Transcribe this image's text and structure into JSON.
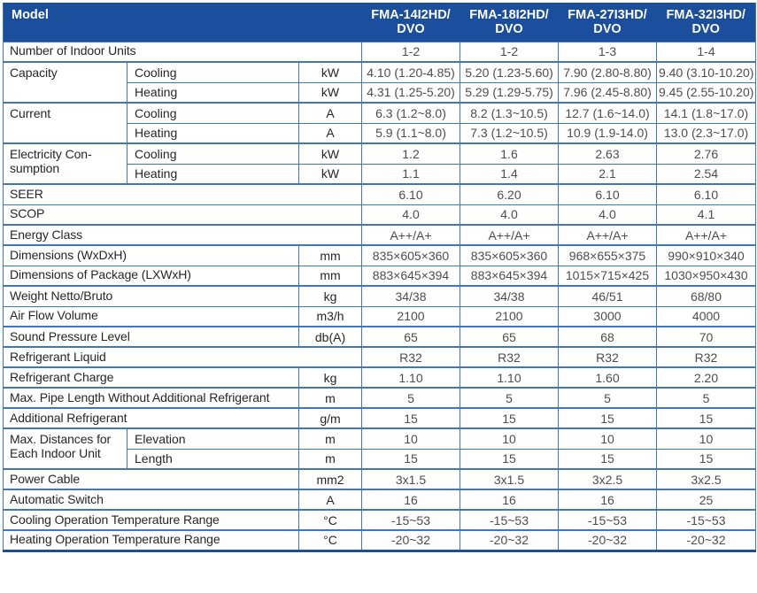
{
  "colors": {
    "header_bg": "#1C4E9E",
    "border": "#4077B8",
    "label_text": "#262626",
    "value_text": "#4D4D4D",
    "header_text": "#FFFFFF"
  },
  "table": {
    "header": {
      "model_label": "Model",
      "models": [
        "FMA-14I2HD/DVO",
        "FMA-18I2HD/DVO",
        "FMA-27I3HD/DVO",
        "FMA-32I3HD/DVO"
      ]
    },
    "rows": [
      {
        "label": "Number of Indoor Units",
        "colspan": 3,
        "thin": true,
        "values": [
          "1-2",
          "1-2",
          "1-3",
          "1-4"
        ]
      },
      {
        "label": "Capacity",
        "rowspan": 2,
        "sublabel": "Cooling",
        "unit": "kW",
        "values": [
          "4.10 (1.20-4.85)",
          "5.20 (1.23-5.60)",
          "7.90 (2.80-8.80)",
          "9.40 (3.10-10.20)"
        ]
      },
      {
        "sublabel": "Heating",
        "unit": "kW",
        "thin": true,
        "values": [
          "4.31 (1.25-5.20)",
          "5.29 (1.29-5.75)",
          "7.96 (2.45-8.80)",
          "9.45 (2.55-10.20)"
        ]
      },
      {
        "label": "Current",
        "rowspan": 2,
        "sublabel": "Cooling",
        "unit": "A",
        "values": [
          "6.3 (1.2~8.0)",
          "8.2 (1.3~10.5)",
          "12.7 (1.6~14.0)",
          "14.1 (1.8~17.0)"
        ]
      },
      {
        "sublabel": "Heating",
        "unit": "A",
        "thin": true,
        "values": [
          "5.9 (1.1~8.0)",
          "7.3 (1.2~10.5)",
          "10.9 (1.9-14.0)",
          "13.0 (2.3~17.0)"
        ]
      },
      {
        "label": "Electricity Con-sumption",
        "rowspan": 2,
        "sublabel": "Cooling",
        "unit": "kW",
        "values": [
          "1.2",
          "1.6",
          "2.63",
          "2.76"
        ]
      },
      {
        "sublabel": "Heating",
        "unit": "kW",
        "thin": true,
        "values": [
          "1.1",
          "1.4",
          "2.1",
          "2.54"
        ]
      },
      {
        "label": "SEER",
        "colspan": 3,
        "values": [
          "6.10",
          "6.20",
          "6.10",
          "6.10"
        ]
      },
      {
        "label": "SCOP",
        "colspan": 3,
        "thin": true,
        "values": [
          "4.0",
          "4.0",
          "4.0",
          "4.1"
        ]
      },
      {
        "label": "Energy Class",
        "colspan": 3,
        "values": [
          "A++/A+",
          "A++/A+",
          "A++/A+",
          "A++/A+"
        ]
      },
      {
        "label": "Dimensions (WxDxH)",
        "colspan": 2,
        "unit": "mm",
        "values": [
          "835×605×360",
          "835×605×360",
          "968×655×375",
          "990×910×340"
        ]
      },
      {
        "label": "Dimensions of Package (LXWxH)",
        "colspan": 2,
        "unit": "mm",
        "thin": true,
        "values": [
          "883×645×394",
          "883×645×394",
          "1015×715×425",
          "1030×950×430"
        ]
      },
      {
        "label": "Weight Netto/Bruto",
        "colspan": 2,
        "unit": "kg",
        "values": [
          "34/38",
          "34/38",
          "46/51",
          "68/80"
        ]
      },
      {
        "label": "Air Flow Volume",
        "colspan": 2,
        "unit": "m3/h",
        "thin": true,
        "values": [
          "2100",
          "2100",
          "3000",
          "4000"
        ]
      },
      {
        "label": "Sound Pressure Level",
        "colspan": 2,
        "unit": "db(A)",
        "values": [
          "65",
          "65",
          "68",
          "70"
        ]
      },
      {
        "label": "Refrigerant Liquid",
        "colspan": 3,
        "values": [
          "R32",
          "R32",
          "R32",
          "R32"
        ]
      },
      {
        "label": "Refrigerant Charge",
        "colspan": 2,
        "unit": "kg",
        "values": [
          "1.10",
          "1.10",
          "1.60",
          "2.20"
        ]
      },
      {
        "label": "Max. Pipe Length Without Additional Refrigerant",
        "colspan": 2,
        "unit": "m",
        "values": [
          "5",
          "5",
          "5",
          "5"
        ]
      },
      {
        "label": "Additional Refrigerant",
        "colspan": 2,
        "unit": "g/m",
        "values": [
          "15",
          "15",
          "15",
          "15"
        ]
      },
      {
        "label": "Max. Distances for Each Indoor Unit",
        "rowspan": 2,
        "sublabel": "Elevation",
        "unit": "m",
        "values": [
          "10",
          "10",
          "10",
          "10"
        ]
      },
      {
        "sublabel": "Length",
        "unit": "m",
        "thin": true,
        "values": [
          "15",
          "15",
          "15",
          "15"
        ]
      },
      {
        "label": "Power Cable",
        "colspan": 2,
        "unit": "mm2",
        "values": [
          "3x1.5",
          "3x1.5",
          "3x2.5",
          "3x2.5"
        ]
      },
      {
        "label": "Automatic Switch",
        "colspan": 2,
        "unit": "A",
        "values": [
          "16",
          "16",
          "16",
          "25"
        ]
      },
      {
        "label": "Cooling Operation Temperature Range",
        "colspan": 2,
        "unit": "°C",
        "values": [
          "-15~53",
          "-15~53",
          "-15~53",
          "-15~53"
        ]
      },
      {
        "label": "Heating Operation Temperature Range",
        "colspan": 2,
        "unit": "°C",
        "values": [
          "-20~32",
          "-20~32",
          "-20~32",
          "-20~32"
        ]
      }
    ]
  }
}
